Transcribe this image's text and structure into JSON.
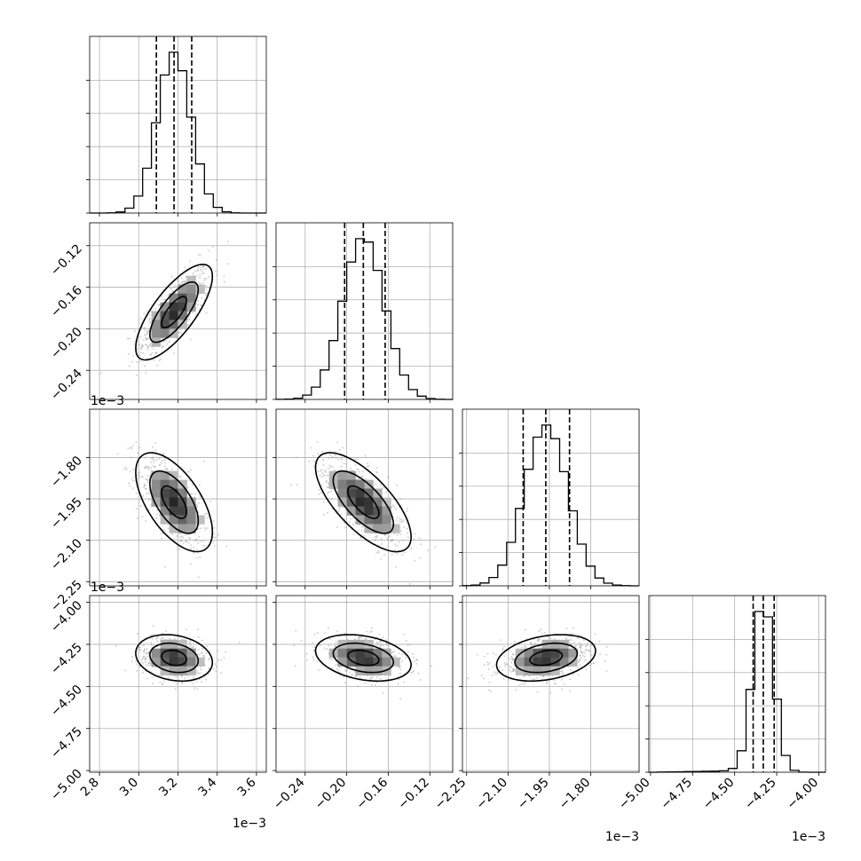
{
  "chart_data": {
    "type": "corner",
    "variables": [
      {
        "index": 0,
        "range": [
          2.75,
          3.65
        ],
        "ticks": [
          2.8,
          3.0,
          3.2,
          3.4,
          3.6
        ],
        "tick_labels": [
          "2.8",
          "3.0",
          "3.2",
          "3.4",
          "3.6"
        ],
        "offset_label": "1e−3",
        "quantiles": [
          3.09,
          3.18,
          3.27
        ],
        "mean": 3.18,
        "sd": 0.085
      },
      {
        "index": 1,
        "range": [
          -0.268,
          -0.098
        ],
        "ticks": [
          -0.24,
          -0.2,
          -0.16,
          -0.12
        ],
        "tick_labels": [
          "−0.24",
          "−0.20",
          "−0.16",
          "−0.12"
        ],
        "offset_label": "1e−3",
        "quantiles": [
          -0.202,
          -0.184,
          -0.163
        ],
        "mean": -0.184,
        "sd": 0.02
      },
      {
        "index": 2,
        "range": [
          -2.265,
          -1.625
        ],
        "ticks": [
          -2.25,
          -2.1,
          -1.95,
          -1.8
        ],
        "tick_labels": [
          "−2.25",
          "−2.10",
          "−1.95",
          "−1.80"
        ],
        "offset_label": "1e−3",
        "quantiles": [
          -2.045,
          -1.963,
          -1.877
        ],
        "mean": -1.962,
        "sd": 0.078
      },
      {
        "index": 3,
        "range": [
          -5.01,
          -3.96
        ],
        "ticks": [
          -5.0,
          -4.75,
          -4.5,
          -4.25,
          -4.0
        ],
        "tick_labels": [
          "−5.00",
          "−4.75",
          "−4.50",
          "−4.25",
          "−4.00"
        ],
        "offset_label": "1e−3",
        "quantiles": [
          -4.39,
          -4.33,
          -4.265
        ],
        "mean": -4.33,
        "sd": 0.06
      }
    ],
    "correlations": {
      "1-0": 0.75,
      "2-0": -0.6,
      "2-1": -0.7,
      "3-0": -0.2,
      "3-1": -0.3,
      "3-2": 0.3
    },
    "grid": true,
    "quantile_line_style": "dashed"
  }
}
